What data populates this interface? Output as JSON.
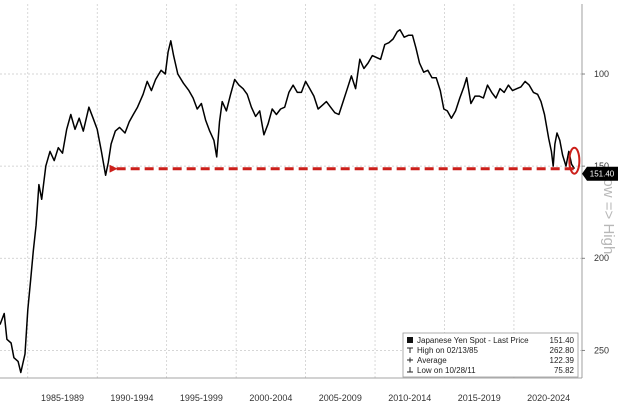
{
  "chart_data": {
    "type": "line",
    "title": "",
    "xlabel": "",
    "ylabel": "",
    "y_axis_side": "right",
    "y_inverted": true,
    "ylim": [
      265,
      62
    ],
    "xlim": [
      1983.0,
      2024.9
    ],
    "grid": true,
    "y_ticks": [
      100,
      150,
      200,
      250
    ],
    "x_ticks": [
      {
        "label": "1985-1989",
        "center": 1987.5
      },
      {
        "label": "1990-1994",
        "center": 1992.5
      },
      {
        "label": "1995-1999",
        "center": 1997.5
      },
      {
        "label": "2000-2004",
        "center": 2002.5
      },
      {
        "label": "2005-2009",
        "center": 2007.5
      },
      {
        "label": "2010-2014",
        "center": 2012.5
      },
      {
        "label": "2015-2019",
        "center": 2017.5
      },
      {
        "label": "2020-2024",
        "center": 2022.5
      }
    ],
    "x_dividers": [
      1985,
      1990,
      1995,
      2000,
      2005,
      2010,
      2015,
      2020
    ],
    "axis_side_label": "Low => High",
    "series": [
      {
        "name": "Japanese Yen Spot - Last Price",
        "color": "#000000",
        "points": [
          [
            1983.0,
            236
          ],
          [
            1983.3,
            230
          ],
          [
            1983.5,
            244
          ],
          [
            1983.8,
            246
          ],
          [
            1984.0,
            254
          ],
          [
            1984.3,
            256
          ],
          [
            1984.5,
            262
          ],
          [
            1984.8,
            252
          ],
          [
            1985.0,
            228
          ],
          [
            1985.2,
            212
          ],
          [
            1985.4,
            196
          ],
          [
            1985.6,
            182
          ],
          [
            1985.8,
            160
          ],
          [
            1986.0,
            168
          ],
          [
            1986.3,
            150
          ],
          [
            1986.6,
            142
          ],
          [
            1986.9,
            147
          ],
          [
            1987.2,
            140
          ],
          [
            1987.5,
            143
          ],
          [
            1987.8,
            130
          ],
          [
            1988.1,
            122
          ],
          [
            1988.4,
            130
          ],
          [
            1988.7,
            124
          ],
          [
            1989.0,
            131
          ],
          [
            1989.4,
            118
          ],
          [
            1989.7,
            124
          ],
          [
            1990.0,
            130
          ],
          [
            1990.3,
            142
          ],
          [
            1990.6,
            155
          ],
          [
            1990.8,
            148
          ],
          [
            1991.0,
            138
          ],
          [
            1991.3,
            131
          ],
          [
            1991.6,
            129
          ],
          [
            1992.0,
            132
          ],
          [
            1992.3,
            126
          ],
          [
            1992.6,
            122
          ],
          [
            1992.9,
            118
          ],
          [
            1993.3,
            111
          ],
          [
            1993.6,
            104
          ],
          [
            1993.9,
            109
          ],
          [
            1994.2,
            103
          ],
          [
            1994.6,
            98
          ],
          [
            1994.9,
            100
          ],
          [
            1995.1,
            88
          ],
          [
            1995.3,
            82
          ],
          [
            1995.5,
            90
          ],
          [
            1995.8,
            100
          ],
          [
            1996.2,
            105
          ],
          [
            1996.6,
            109
          ],
          [
            1996.9,
            113
          ],
          [
            1997.2,
            119
          ],
          [
            1997.5,
            116
          ],
          [
            1997.8,
            125
          ],
          [
            1998.1,
            131
          ],
          [
            1998.4,
            136
          ],
          [
            1998.6,
            145
          ],
          [
            1998.8,
            126
          ],
          [
            1999.0,
            115
          ],
          [
            1999.3,
            120
          ],
          [
            1999.6,
            111
          ],
          [
            1999.9,
            103
          ],
          [
            2000.2,
            106
          ],
          [
            2000.5,
            108
          ],
          [
            2000.8,
            111
          ],
          [
            2001.1,
            118
          ],
          [
            2001.4,
            123
          ],
          [
            2001.7,
            120
          ],
          [
            2002.0,
            133
          ],
          [
            2002.3,
            127
          ],
          [
            2002.6,
            119
          ],
          [
            2002.9,
            122
          ],
          [
            2003.2,
            119
          ],
          [
            2003.5,
            118
          ],
          [
            2003.8,
            110
          ],
          [
            2004.1,
            106
          ],
          [
            2004.4,
            110
          ],
          [
            2004.7,
            110
          ],
          [
            2005.0,
            104
          ],
          [
            2005.3,
            108
          ],
          [
            2005.6,
            112
          ],
          [
            2005.9,
            119
          ],
          [
            2006.2,
            117
          ],
          [
            2006.5,
            115
          ],
          [
            2006.8,
            118
          ],
          [
            2007.1,
            121
          ],
          [
            2007.4,
            122
          ],
          [
            2007.7,
            115
          ],
          [
            2008.0,
            108
          ],
          [
            2008.3,
            101
          ],
          [
            2008.6,
            108
          ],
          [
            2008.9,
            92
          ],
          [
            2009.2,
            97
          ],
          [
            2009.5,
            94
          ],
          [
            2009.8,
            90
          ],
          [
            2010.1,
            91
          ],
          [
            2010.4,
            92
          ],
          [
            2010.7,
            84
          ],
          [
            2011.0,
            83
          ],
          [
            2011.3,
            81
          ],
          [
            2011.6,
            77
          ],
          [
            2011.8,
            76
          ],
          [
            2012.1,
            80
          ],
          [
            2012.4,
            79
          ],
          [
            2012.7,
            79
          ],
          [
            2012.95,
            86
          ],
          [
            2013.2,
            94
          ],
          [
            2013.5,
            99
          ],
          [
            2013.8,
            98
          ],
          [
            2014.1,
            102
          ],
          [
            2014.4,
            102
          ],
          [
            2014.7,
            109
          ],
          [
            2014.95,
            119
          ],
          [
            2015.2,
            120
          ],
          [
            2015.5,
            124
          ],
          [
            2015.8,
            120
          ],
          [
            2016.1,
            113
          ],
          [
            2016.4,
            107
          ],
          [
            2016.6,
            102
          ],
          [
            2016.9,
            116
          ],
          [
            2017.2,
            112
          ],
          [
            2017.5,
            112
          ],
          [
            2017.8,
            113
          ],
          [
            2018.1,
            106
          ],
          [
            2018.4,
            110
          ],
          [
            2018.7,
            113
          ],
          [
            2019.0,
            108
          ],
          [
            2019.3,
            110
          ],
          [
            2019.6,
            106
          ],
          [
            2019.9,
            109
          ],
          [
            2020.2,
            108
          ],
          [
            2020.5,
            107
          ],
          [
            2020.8,
            104
          ],
          [
            2021.1,
            106
          ],
          [
            2021.4,
            110
          ],
          [
            2021.7,
            111
          ],
          [
            2021.95,
            115
          ],
          [
            2022.2,
            122
          ],
          [
            2022.5,
            135
          ],
          [
            2022.7,
            142
          ],
          [
            2022.83,
            150
          ],
          [
            2022.95,
            138
          ],
          [
            2023.1,
            132
          ],
          [
            2023.3,
            136
          ],
          [
            2023.5,
            144
          ],
          [
            2023.75,
            150
          ],
          [
            2023.95,
            142
          ],
          [
            2024.15,
            149
          ],
          [
            2024.35,
            151.4
          ]
        ]
      }
    ],
    "last_price_tag": {
      "value": 151.4,
      "label": "151.40",
      "color": "#000000"
    },
    "reference_line": {
      "value": 151.4,
      "from_x": 1990.6,
      "to_x": 2024.3,
      "color": "#cc1f1a",
      "style": "dashed-arrow"
    },
    "highlight_circle": {
      "x": 2024.35,
      "y": 151.4,
      "color": "#cc1f1a"
    },
    "legend": {
      "placement": "bottom-right",
      "entries": [
        {
          "label": "Japanese Yen Spot - Last Price",
          "value": "151.40",
          "marker": "solid-square"
        },
        {
          "label": "High on 02/13/85",
          "value": "262.80",
          "marker": "tick-up"
        },
        {
          "label": "Average",
          "value": "122.39",
          "marker": "tick-plus"
        },
        {
          "label": "Low on 10/28/11",
          "value": "75.82",
          "marker": "tick-down"
        }
      ]
    }
  }
}
